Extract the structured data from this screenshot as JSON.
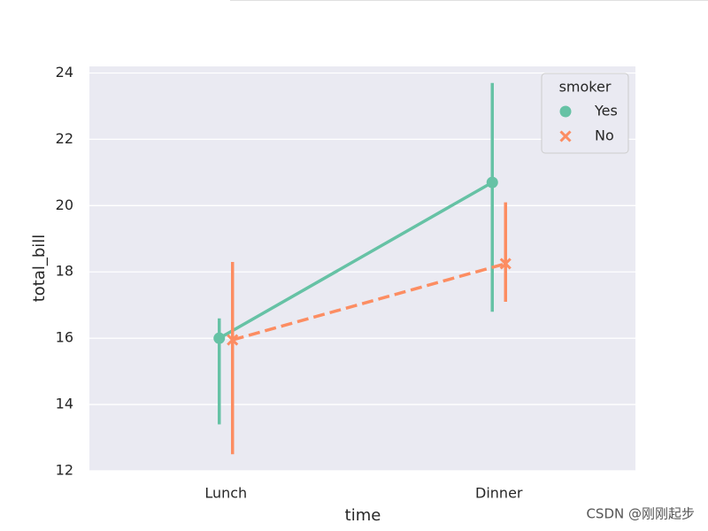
{
  "chart_data": {
    "type": "point",
    "x_label": "time",
    "y_label": "total_bill",
    "categories": [
      "Lunch",
      "Dinner"
    ],
    "series": [
      {
        "name": "Yes",
        "color": "#66c2a5",
        "marker": "o",
        "linestyle": "solid",
        "values": [
          16.0,
          20.7
        ],
        "ci_low": [
          13.4,
          16.8
        ],
        "ci_high": [
          16.6,
          23.7
        ]
      },
      {
        "name": "No",
        "color": "#fc8d62",
        "marker": "x",
        "linestyle": "dashed",
        "values": [
          15.95,
          18.25
        ],
        "ci_low": [
          12.5,
          17.1
        ],
        "ci_high": [
          18.3,
          20.1
        ]
      }
    ],
    "ylim": [
      12,
      24.2
    ],
    "yticks": [
      12,
      14,
      16,
      18,
      20,
      22,
      24
    ],
    "grid": true,
    "legend_title": "smoker",
    "legend_position": "upper-right",
    "background": "#eaeaf2"
  },
  "watermark": "CSDN @刚刚起步"
}
